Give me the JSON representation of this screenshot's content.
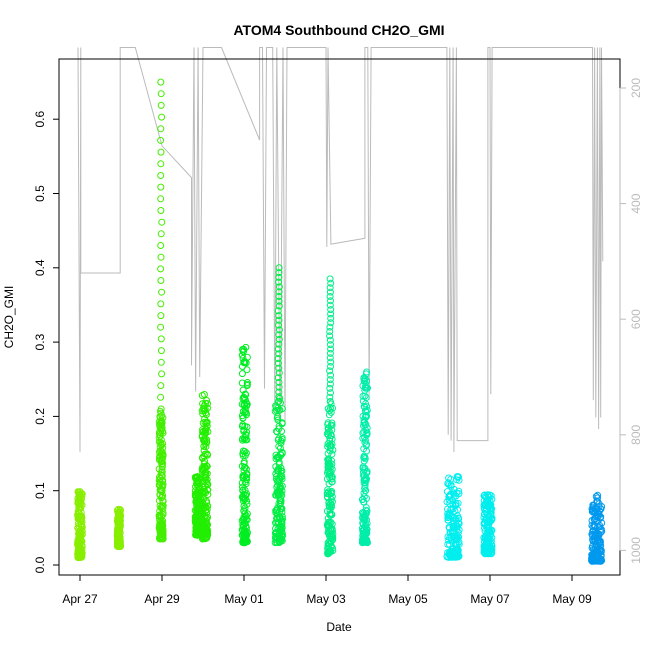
{
  "chart_data": {
    "type": "scatter",
    "title": "ATOM4 Southbound CH2O_GMI",
    "xlabel": "Date",
    "ylabel": "CH2O_GMI",
    "ylim": [
      0.0,
      0.65
    ],
    "xlim_days": [
      -0.4,
      12.7
    ],
    "x_ticks": [
      {
        "day": 0,
        "label": "Apr 27"
      },
      {
        "day": 2,
        "label": "Apr 29"
      },
      {
        "day": 4,
        "label": "May 01"
      },
      {
        "day": 6,
        "label": "May 03"
      },
      {
        "day": 8,
        "label": "May 05"
      },
      {
        "day": 10,
        "label": "May 07"
      },
      {
        "day": 12,
        "label": "May 09"
      }
    ],
    "y_ticks": [
      0.0,
      0.1,
      0.2,
      0.3,
      0.4,
      0.5,
      0.6
    ],
    "y_tick_labels": [
      "0.0",
      "0.1",
      "0.2",
      "0.3",
      "0.4",
      "0.5",
      "0.6"
    ],
    "y2_ticks": [
      200,
      400,
      600,
      800,
      1000
    ],
    "y2_tick_labels": [
      "200",
      "400",
      "600",
      "800",
      "1000"
    ],
    "y2_lim": [
      1050,
      130
    ],
    "grid": false,
    "point_style": "open-circle",
    "secondary_line_color": "#bbbbbb",
    "clusters": [
      {
        "day": 0.0,
        "width": 0.12,
        "ymin": 0.01,
        "ymax": 0.1,
        "color": "#88ee00"
      },
      {
        "day": 0.95,
        "width": 0.08,
        "ymin": 0.025,
        "ymax": 0.075,
        "color": "#88ee00"
      },
      {
        "day": 1.98,
        "width": 0.1,
        "ymin": 0.035,
        "ymax": 0.21,
        "spike_max": 0.65,
        "spike_from": 0.21,
        "color": "#44ee00"
      },
      {
        "day": 2.88,
        "width": 0.14,
        "ymin": 0.04,
        "ymax": 0.12,
        "color": "#22ee00"
      },
      {
        "day": 3.05,
        "width": 0.14,
        "ymin": 0.035,
        "ymax": 0.23,
        "color": "#22ee00"
      },
      {
        "day": 4.02,
        "width": 0.13,
        "ymin": 0.03,
        "ymax": 0.295,
        "color": "#00ee22"
      },
      {
        "day": 4.85,
        "width": 0.18,
        "ymin": 0.03,
        "ymax": 0.225,
        "spike_max": 0.4,
        "spike_from": 0.22,
        "color": "#00ee44"
      },
      {
        "day": 6.1,
        "width": 0.14,
        "ymin": 0.015,
        "ymax": 0.22,
        "spike_max": 0.385,
        "spike_from": 0.22,
        "color": "#00ee88"
      },
      {
        "day": 6.95,
        "width": 0.13,
        "ymin": 0.03,
        "ymax": 0.26,
        "color": "#00eeaa"
      },
      {
        "day": 9.1,
        "width": 0.3,
        "ymin": 0.01,
        "ymax": 0.12,
        "color": "#00eeee"
      },
      {
        "day": 9.95,
        "width": 0.2,
        "ymin": 0.015,
        "ymax": 0.095,
        "color": "#00eeee"
      },
      {
        "day": 12.6,
        "width": 0.25,
        "ymin": 0.005,
        "ymax": 0.095,
        "color": "#0099ee"
      }
    ],
    "secondary_series": [
      {
        "day": -0.05,
        "value": 130
      },
      {
        "day": 0.0,
        "value": 830
      },
      {
        "day": 0.02,
        "value": 130
      },
      {
        "day": 0.02,
        "value": 520
      },
      {
        "day": 0.98,
        "value": 520
      },
      {
        "day": 0.98,
        "value": 130
      },
      {
        "day": 1.35,
        "value": 130
      },
      {
        "day": 2.0,
        "value": 300
      },
      {
        "day": 2.72,
        "value": 355
      },
      {
        "day": 2.72,
        "value": 680
      },
      {
        "day": 2.78,
        "value": 130
      },
      {
        "day": 2.82,
        "value": 725
      },
      {
        "day": 2.88,
        "value": 130
      },
      {
        "day": 2.92,
        "value": 700
      },
      {
        "day": 3.0,
        "value": 130
      },
      {
        "day": 3.45,
        "value": 130
      },
      {
        "day": 4.38,
        "value": 290
      },
      {
        "day": 4.38,
        "value": 130
      },
      {
        "day": 4.45,
        "value": 130
      },
      {
        "day": 4.5,
        "value": 720
      },
      {
        "day": 4.55,
        "value": 130
      },
      {
        "day": 4.7,
        "value": 130
      },
      {
        "day": 4.75,
        "value": 760
      },
      {
        "day": 4.8,
        "value": 130
      },
      {
        "day": 4.88,
        "value": 800
      },
      {
        "day": 4.95,
        "value": 130
      },
      {
        "day": 5.0,
        "value": 780
      },
      {
        "day": 5.05,
        "value": 130
      },
      {
        "day": 6.0,
        "value": 130
      },
      {
        "day": 6.02,
        "value": 475
      },
      {
        "day": 6.05,
        "value": 130
      },
      {
        "day": 6.12,
        "value": 470
      },
      {
        "day": 6.95,
        "value": 460
      },
      {
        "day": 6.95,
        "value": 130
      },
      {
        "day": 7.02,
        "value": 130
      },
      {
        "day": 7.05,
        "value": 740
      },
      {
        "day": 7.1,
        "value": 130
      },
      {
        "day": 8.95,
        "value": 130
      },
      {
        "day": 8.98,
        "value": 800
      },
      {
        "day": 9.02,
        "value": 130
      },
      {
        "day": 9.05,
        "value": 810
      },
      {
        "day": 9.1,
        "value": 130
      },
      {
        "day": 9.12,
        "value": 830
      },
      {
        "day": 9.18,
        "value": 130
      },
      {
        "day": 9.2,
        "value": 810
      },
      {
        "day": 9.95,
        "value": 810
      },
      {
        "day": 9.95,
        "value": 130
      },
      {
        "day": 10.0,
        "value": 130
      },
      {
        "day": 10.02,
        "value": 730
      },
      {
        "day": 10.05,
        "value": 130
      },
      {
        "day": 12.5,
        "value": 130
      },
      {
        "day": 12.52,
        "value": 740
      },
      {
        "day": 12.55,
        "value": 130
      },
      {
        "day": 12.58,
        "value": 770
      },
      {
        "day": 12.62,
        "value": 130
      },
      {
        "day": 12.65,
        "value": 790
      },
      {
        "day": 12.68,
        "value": 130
      },
      {
        "day": 12.7,
        "value": 770
      },
      {
        "day": 12.72,
        "value": 130
      },
      {
        "day": 12.75,
        "value": 500
      }
    ]
  }
}
